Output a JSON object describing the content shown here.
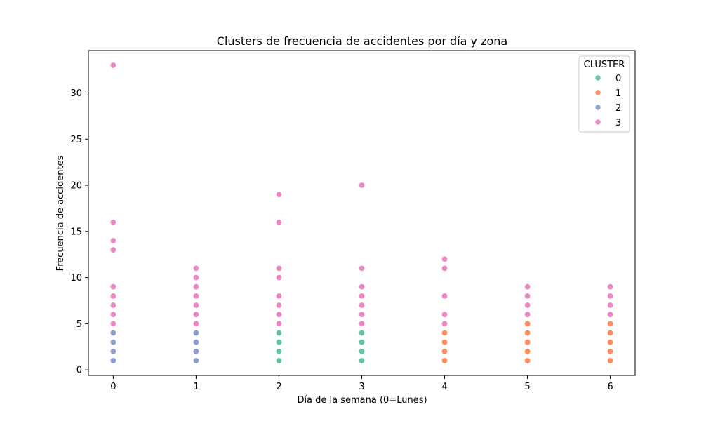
{
  "chart_data": {
    "type": "scatter",
    "title": "Clusters de frecuencia de accidentes por día y zona",
    "xlabel": "Día de la semana (0=Lunes)",
    "ylabel": "Frecuencia de accidentes",
    "xlim": [
      -0.3,
      6.3
    ],
    "ylim": [
      -0.6,
      34.6
    ],
    "xticks": [
      0,
      1,
      2,
      3,
      4,
      5,
      6
    ],
    "yticks": [
      0,
      5,
      10,
      15,
      20,
      25,
      30
    ],
    "grid": false,
    "legend": {
      "title": "CLUSTER",
      "placement": "top-right"
    },
    "series": [
      {
        "name": "0",
        "color": "#66c2a5",
        "points": [
          [
            2,
            1
          ],
          [
            2,
            2
          ],
          [
            2,
            3
          ],
          [
            2,
            4
          ],
          [
            3,
            1
          ],
          [
            3,
            2
          ],
          [
            3,
            3
          ],
          [
            3,
            4
          ]
        ]
      },
      {
        "name": "1",
        "color": "#fc8d62",
        "points": [
          [
            4,
            1
          ],
          [
            4,
            2
          ],
          [
            4,
            3
          ],
          [
            4,
            4
          ],
          [
            5,
            1
          ],
          [
            5,
            2
          ],
          [
            5,
            3
          ],
          [
            5,
            4
          ],
          [
            5,
            5
          ],
          [
            6,
            1
          ],
          [
            6,
            2
          ],
          [
            6,
            3
          ],
          [
            6,
            4
          ],
          [
            6,
            5
          ]
        ]
      },
      {
        "name": "2",
        "color": "#8da0cb",
        "points": [
          [
            0,
            1
          ],
          [
            0,
            2
          ],
          [
            0,
            3
          ],
          [
            0,
            4
          ],
          [
            1,
            1
          ],
          [
            1,
            2
          ],
          [
            1,
            3
          ],
          [
            1,
            4
          ]
        ]
      },
      {
        "name": "3",
        "color": "#e78ac3",
        "points": [
          [
            0,
            5
          ],
          [
            0,
            6
          ],
          [
            0,
            7
          ],
          [
            0,
            8
          ],
          [
            0,
            9
          ],
          [
            0,
            13
          ],
          [
            0,
            14
          ],
          [
            0,
            16
          ],
          [
            0,
            33
          ],
          [
            1,
            5
          ],
          [
            1,
            6
          ],
          [
            1,
            7
          ],
          [
            1,
            8
          ],
          [
            1,
            9
          ],
          [
            1,
            10
          ],
          [
            1,
            11
          ],
          [
            2,
            5
          ],
          [
            2,
            6
          ],
          [
            2,
            7
          ],
          [
            2,
            8
          ],
          [
            2,
            10
          ],
          [
            2,
            11
          ],
          [
            2,
            16
          ],
          [
            2,
            19
          ],
          [
            3,
            5
          ],
          [
            3,
            6
          ],
          [
            3,
            7
          ],
          [
            3,
            8
          ],
          [
            3,
            9
          ],
          [
            3,
            11
          ],
          [
            3,
            20
          ],
          [
            4,
            5
          ],
          [
            4,
            6
          ],
          [
            4,
            8
          ],
          [
            4,
            11
          ],
          [
            4,
            12
          ],
          [
            5,
            6
          ],
          [
            5,
            7
          ],
          [
            5,
            8
          ],
          [
            5,
            9
          ],
          [
            6,
            6
          ],
          [
            6,
            7
          ],
          [
            6,
            8
          ],
          [
            6,
            9
          ]
        ]
      }
    ]
  }
}
